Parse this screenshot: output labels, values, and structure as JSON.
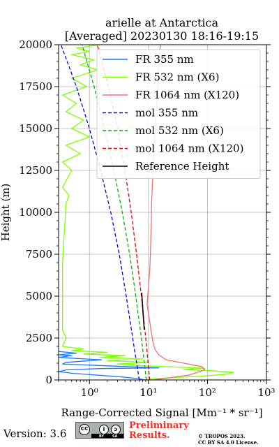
{
  "chart_data": {
    "type": "line",
    "title": "arielle at Antarctica",
    "subtitle": "[Averaged] 20230130 18:16-19:15",
    "xlabel": "Range-Corrected Signal [Mm⁻¹ * sr⁻¹]",
    "ylabel": "Height (m)",
    "xscale": "log",
    "xlim": [
      0.3,
      1000
    ],
    "ylim": [
      0,
      20000
    ],
    "xticks": [
      1,
      10,
      100,
      1000
    ],
    "xtick_labels": [
      "10⁰",
      "10¹",
      "10²",
      "10³"
    ],
    "yticks": [
      0,
      2500,
      5000,
      7500,
      10000,
      12500,
      15000,
      17500,
      20000
    ],
    "ytick_labels": [
      "0",
      "2500",
      "5000",
      "7500",
      "10000",
      "12500",
      "15000",
      "17500",
      "20000"
    ],
    "grid": true,
    "legend_position": "top-right",
    "series": [
      {
        "name": "FR 355 nm",
        "color": "#1f77ff",
        "style": "solid",
        "points": [
          [
            9,
            0
          ],
          [
            6,
            100
          ],
          [
            3,
            200
          ],
          [
            1.2,
            300
          ],
          [
            0.5,
            400
          ],
          [
            0.3,
            500
          ],
          [
            0.4,
            600
          ],
          [
            1.5,
            680
          ],
          [
            15,
            720
          ],
          [
            4,
            800
          ],
          [
            0.8,
            900
          ],
          [
            0.35,
            950
          ],
          [
            0.4,
            1050
          ],
          [
            1.6,
            1200
          ],
          [
            0.5,
            1300
          ],
          [
            0.3,
            1350
          ],
          [
            0.5,
            1450
          ],
          [
            0.3,
            1500
          ],
          [
            0.6,
            1600
          ],
          [
            0.3,
            1700
          ]
        ]
      },
      {
        "name": "FR 532 nm (X6)",
        "color": "#7fff00",
        "style": "solid",
        "points": [
          [
            8,
            0
          ],
          [
            15,
            100
          ],
          [
            60,
            200
          ],
          [
            200,
            330
          ],
          [
            280,
            450
          ],
          [
            120,
            550
          ],
          [
            40,
            620
          ],
          [
            90,
            700
          ],
          [
            25,
            780
          ],
          [
            8,
            850
          ],
          [
            3,
            950
          ],
          [
            10,
            1050
          ],
          [
            2,
            1150
          ],
          [
            8,
            1250
          ],
          [
            1.5,
            1350
          ],
          [
            4,
            1450
          ],
          [
            0.8,
            1550
          ],
          [
            2,
            1650
          ],
          [
            0.5,
            1750
          ],
          [
            0.8,
            1850
          ],
          [
            0.35,
            2000
          ],
          [
            0.4,
            2500
          ],
          [
            0.35,
            3000
          ],
          [
            0.35,
            7000
          ],
          [
            0.4,
            10500
          ],
          [
            0.45,
            11000
          ],
          [
            0.35,
            11500
          ],
          [
            0.5,
            12500
          ],
          [
            0.35,
            13000
          ],
          [
            0.7,
            13500
          ],
          [
            0.4,
            14000
          ],
          [
            1,
            14500
          ],
          [
            0.5,
            15000
          ],
          [
            0.8,
            15500
          ],
          [
            0.4,
            16000
          ],
          [
            0.6,
            16500
          ],
          [
            0.35,
            17000
          ],
          [
            0.9,
            17500
          ],
          [
            0.5,
            18000
          ],
          [
            1.4,
            18500
          ],
          [
            0.7,
            18800
          ],
          [
            1.2,
            19100
          ],
          [
            0.5,
            19400
          ],
          [
            1.0,
            19600
          ],
          [
            0.6,
            19800
          ],
          [
            1.5,
            20000
          ]
        ]
      },
      {
        "name": "FR 1064 nm (X120)",
        "color": "#f07070",
        "style": "solid",
        "points": [
          [
            12,
            0
          ],
          [
            20,
            100
          ],
          [
            50,
            300
          ],
          [
            90,
            600
          ],
          [
            80,
            800
          ],
          [
            40,
            1000
          ],
          [
            20,
            1200
          ],
          [
            15,
            1500
          ],
          [
            13,
            1800
          ],
          [
            12,
            2200
          ],
          [
            11.5,
            2600
          ],
          [
            11,
            3000
          ],
          [
            10.5,
            3500
          ],
          [
            10,
            4000
          ],
          [
            9.5,
            4500
          ],
          [
            10,
            5500
          ],
          [
            10.5,
            6500
          ],
          [
            10.8,
            7500
          ],
          [
            11,
            8500
          ],
          [
            11.2,
            9500
          ],
          [
            11.3,
            10500
          ],
          [
            11.6,
            11500
          ],
          [
            12,
            12500
          ],
          [
            12.4,
            13500
          ],
          [
            12.8,
            14500
          ],
          [
            13.3,
            15500
          ],
          [
            13.8,
            16500
          ],
          [
            14.3,
            17500
          ],
          [
            14.8,
            18500
          ],
          [
            15.4,
            19500
          ],
          [
            16,
            20000
          ]
        ]
      },
      {
        "name": "mol 355 nm",
        "color": "#0000e0",
        "style": "dashed",
        "points": [
          [
            7,
            0
          ],
          [
            5.4,
            2500
          ],
          [
            4.2,
            5000
          ],
          [
            3.2,
            7500
          ],
          [
            2.3,
            10000
          ],
          [
            1.55,
            12500
          ],
          [
            1.0,
            15000
          ],
          [
            0.6,
            17500
          ],
          [
            0.33,
            20000
          ]
        ]
      },
      {
        "name": "mol 532 nm (X6)",
        "color": "#00b400",
        "style": "dashed",
        "points": [
          [
            9.2,
            0
          ],
          [
            7.6,
            2500
          ],
          [
            6.1,
            5000
          ],
          [
            4.8,
            7500
          ],
          [
            3.6,
            10000
          ],
          [
            2.6,
            12500
          ],
          [
            1.8,
            15000
          ],
          [
            1.2,
            17500
          ],
          [
            0.75,
            20000
          ]
        ]
      },
      {
        "name": "mol 1064 nm (X120)",
        "color": "#e00000",
        "style": "dashed",
        "points": [
          [
            10.5,
            0
          ],
          [
            9,
            2500
          ],
          [
            7.6,
            5000
          ],
          [
            6.3,
            7500
          ],
          [
            5.1,
            10000
          ],
          [
            4,
            12500
          ],
          [
            3,
            15000
          ],
          [
            2.1,
            17500
          ],
          [
            1.35,
            20000
          ]
        ]
      },
      {
        "name": "Reference Height",
        "color": "#000000",
        "style": "solid",
        "points": [
          [
            8.5,
            3000
          ],
          [
            8.1,
            4000
          ],
          [
            7.7,
            5200
          ]
        ]
      }
    ]
  },
  "footer": {
    "version": "Version: 3.6",
    "license_badge": {
      "left": "cc",
      "mid": "i",
      "right": "ↄ",
      "strip_left": "BY",
      "strip_right": "SA"
    },
    "preliminary_line1": "Preliminary",
    "preliminary_line2": "Results.",
    "copyright_line1": "© TROPOS 2023.",
    "copyright_line2": "CC BY SA 4.0 License."
  }
}
